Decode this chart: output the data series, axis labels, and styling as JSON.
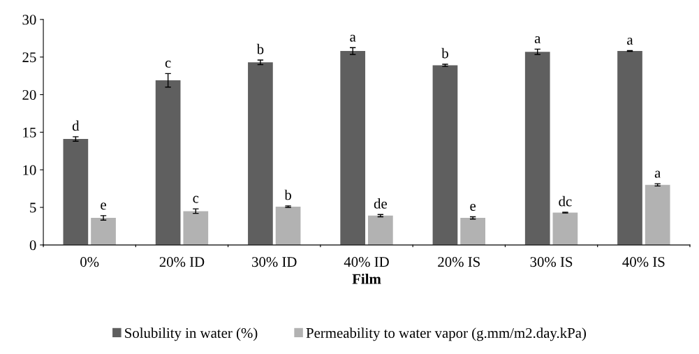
{
  "chart_data": {
    "type": "bar",
    "xlabel": "Film",
    "categories": [
      "0%",
      "20% ID",
      "30% ID",
      "40% ID",
      "20% IS",
      "30% IS",
      "40% IS"
    ],
    "series": [
      {
        "name": "Solubility in water (%)",
        "color": "#5f5f5f",
        "values": [
          14.1,
          21.9,
          24.3,
          25.8,
          23.9,
          25.7,
          25.8
        ],
        "errors": [
          0.3,
          0.9,
          0.3,
          0.45,
          0.15,
          0.35,
          0.05
        ],
        "value_labels": [
          "d",
          "c",
          "b",
          "a",
          "b",
          "a",
          "a"
        ]
      },
      {
        "name": "Permeability to water vapor (g.mm/m2.day.kPa)",
        "color": "#b2b2b2",
        "values": [
          3.6,
          4.5,
          5.1,
          3.9,
          3.6,
          4.3,
          8.0
        ],
        "errors": [
          0.3,
          0.3,
          0.1,
          0.15,
          0.15,
          0.05,
          0.15
        ],
        "value_labels": [
          "e",
          "c",
          "b",
          "de",
          "e",
          "dc",
          "a"
        ]
      }
    ],
    "ylim": [
      0,
      30
    ],
    "yticks": [
      0,
      5,
      10,
      15,
      20,
      25,
      30
    ],
    "grid": false,
    "legend": "bottom"
  }
}
